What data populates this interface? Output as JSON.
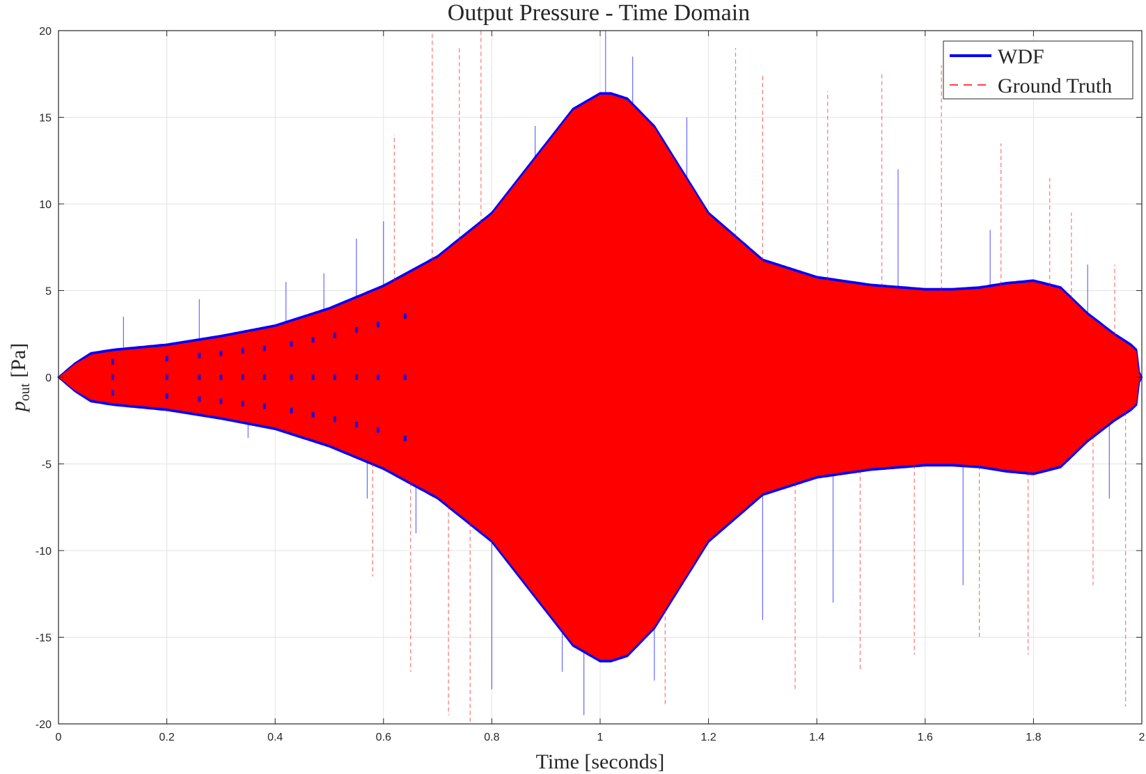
{
  "chart_data": {
    "type": "line",
    "title": "Output Pressure - Time Domain",
    "xlabel": "Time [seconds]",
    "ylabel_main": "p",
    "ylabel_sub": "out",
    "ylabel_unit": "[Pa]",
    "xlim": [
      0,
      2
    ],
    "ylim": [
      -20,
      20
    ],
    "xticks": [
      0,
      0.2,
      0.4,
      0.6,
      0.8,
      1,
      1.2,
      1.4,
      1.6,
      1.8,
      2
    ],
    "xtick_labels": [
      "0",
      "0.2",
      "0.4",
      "0.6",
      "0.8",
      "1",
      "1.2",
      "1.4",
      "1.6",
      "1.8",
      "2"
    ],
    "yticks": [
      -20,
      -15,
      -10,
      -5,
      0,
      5,
      10,
      15,
      20
    ],
    "ytick_labels": [
      "-20",
      "-15",
      "-10",
      "-5",
      "0",
      "5",
      "10",
      "15",
      "20"
    ],
    "grid": true,
    "legend_position": "top-right",
    "series": [
      {
        "name": "WDF",
        "color": "#0000ff",
        "style": "solid",
        "envelope": {
          "t": [
            0,
            0.03,
            0.06,
            0.1,
            0.2,
            0.3,
            0.4,
            0.5,
            0.6,
            0.7,
            0.8,
            0.9,
            0.95,
            1.0,
            1.02,
            1.05,
            1.1,
            1.2,
            1.3,
            1.4,
            1.5,
            1.6,
            1.65,
            1.7,
            1.75,
            1.8,
            1.85,
            1.9,
            1.95,
            1.98,
            1.99,
            1.995,
            2.0
          ],
          "amp": [
            0,
            0.8,
            1.4,
            1.6,
            1.9,
            2.4,
            3.0,
            4.0,
            5.3,
            7.0,
            9.5,
            13.5,
            15.5,
            16.4,
            16.4,
            16.1,
            14.5,
            9.5,
            6.8,
            5.8,
            5.35,
            5.1,
            5.1,
            5.2,
            5.45,
            5.6,
            5.2,
            3.7,
            2.5,
            1.9,
            1.6,
            0.3,
            0
          ]
        },
        "spikes": {
          "t": [
            0.12,
            0.26,
            0.35,
            0.42,
            0.49,
            0.55,
            0.57,
            0.6,
            0.66,
            0.8,
            0.88,
            0.93,
            0.97,
            1.01,
            1.06,
            1.1,
            1.16,
            1.3,
            1.43,
            1.55,
            1.67,
            1.72,
            1.9,
            1.94
          ],
          "peak": [
            3.5,
            4.5,
            -3.5,
            5.5,
            6.0,
            8.0,
            -7.0,
            9.0,
            -9.0,
            -18.0,
            14.5,
            -17.0,
            -19.5,
            20.0,
            18.5,
            -17.5,
            15.0,
            -14.0,
            -13.0,
            12.0,
            -12.0,
            8.5,
            6.5,
            -7.0
          ]
        }
      },
      {
        "name": "Ground Truth",
        "color": "#ff0000",
        "style": "dashed",
        "envelope": {
          "t": [
            0,
            0.03,
            0.06,
            0.1,
            0.2,
            0.3,
            0.4,
            0.5,
            0.6,
            0.7,
            0.8,
            0.9,
            0.95,
            1.0,
            1.02,
            1.05,
            1.1,
            1.2,
            1.3,
            1.4,
            1.5,
            1.6,
            1.65,
            1.7,
            1.75,
            1.8,
            1.85,
            1.9,
            1.95,
            1.98,
            1.99,
            1.995,
            2.0
          ],
          "amp": [
            0,
            0.75,
            1.3,
            1.5,
            1.8,
            2.3,
            2.9,
            3.9,
            5.2,
            6.9,
            9.4,
            13.4,
            15.4,
            16.3,
            16.3,
            16.0,
            14.4,
            9.4,
            6.7,
            5.7,
            5.25,
            5.0,
            5.0,
            5.1,
            5.35,
            5.5,
            5.1,
            3.6,
            2.4,
            1.8,
            1.5,
            0.2,
            0
          ]
        },
        "spikes": {
          "t": [
            0.58,
            0.62,
            0.65,
            0.69,
            0.72,
            0.74,
            0.76,
            0.78,
            1.12,
            1.25,
            1.3,
            1.36,
            1.42,
            1.48,
            1.52,
            1.58,
            1.63,
            1.7,
            1.74,
            1.79,
            1.83,
            1.87,
            1.91,
            1.95,
            1.97
          ],
          "peak": [
            -11.5,
            14.0,
            -17.0,
            20.0,
            -19.5,
            19.0,
            -20.0,
            20.0,
            -19.0,
            19.0,
            17.5,
            -18.0,
            16.5,
            -17.0,
            17.5,
            -16.0,
            18.0,
            -15.0,
            13.5,
            -16.0,
            11.5,
            9.5,
            -12.0,
            6.5,
            -19.0
          ]
        }
      }
    ]
  }
}
